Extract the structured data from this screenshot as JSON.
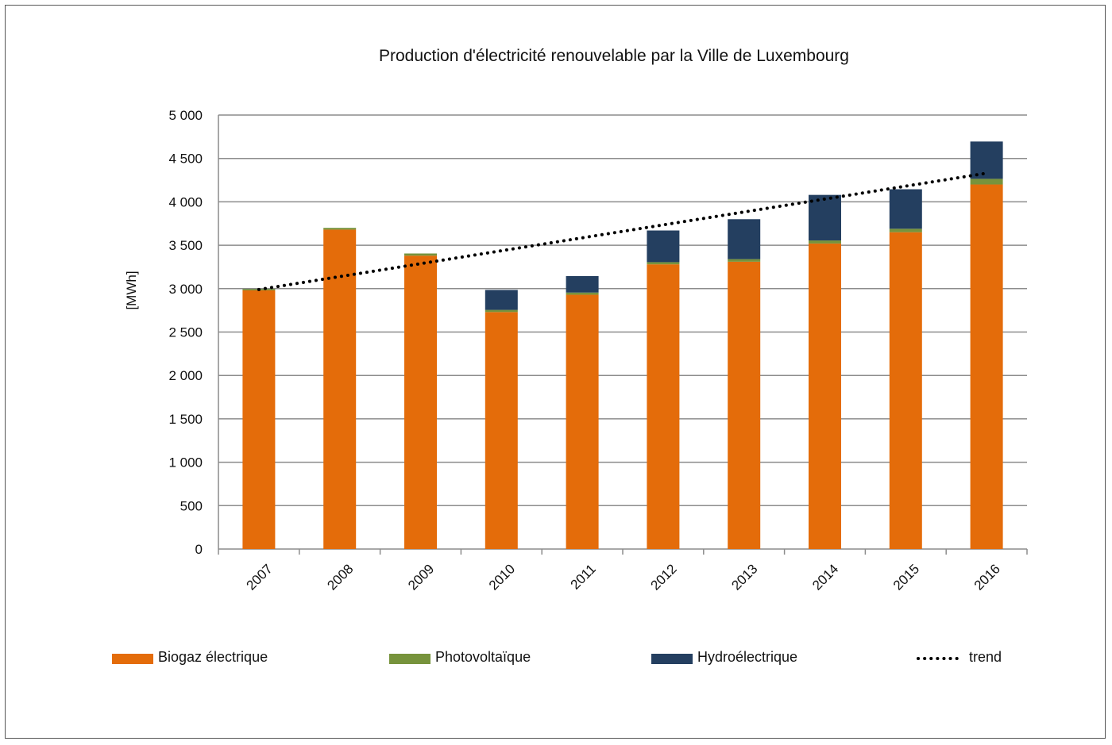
{
  "chart_data": {
    "type": "bar",
    "stacked": true,
    "title": "Production d'électricité renouvelable par la Ville de Luxembourg",
    "xlabel": "",
    "ylabel": "[MWh]",
    "ylim": [
      0,
      5000
    ],
    "yticks": [
      0,
      500,
      1000,
      1500,
      2000,
      2500,
      3000,
      3500,
      4000,
      4500,
      5000
    ],
    "ytick_labels": [
      "0",
      "500",
      "1 000",
      "1 500",
      "2 000",
      "2 500",
      "3 000",
      "3 500",
      "4 000",
      "4 500",
      "5 000"
    ],
    "categories": [
      "2007",
      "2008",
      "2009",
      "2010",
      "2011",
      "2012",
      "2013",
      "2014",
      "2015",
      "2016"
    ],
    "series": [
      {
        "name": "Biogaz électrique",
        "color": "#e46c0a",
        "values": [
          2980,
          3680,
          3380,
          2730,
          2930,
          3280,
          3310,
          3520,
          3650,
          4200
        ]
      },
      {
        "name": "Photovoltaïque",
        "color": "#77933c",
        "values": [
          15,
          20,
          25,
          25,
          25,
          25,
          30,
          35,
          40,
          65
        ]
      },
      {
        "name": "Hydroélectrique",
        "color": "#243f60",
        "values": [
          0,
          0,
          0,
          230,
          190,
          365,
          460,
          525,
          455,
          430
        ]
      }
    ],
    "trend": {
      "name": "trend",
      "color": "#000000",
      "style": "dotted",
      "start": 2990,
      "end": 4330
    },
    "grid": true,
    "legend_position": "bottom"
  }
}
